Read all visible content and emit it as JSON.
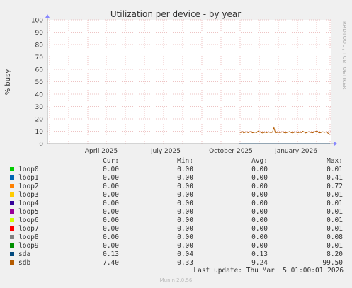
{
  "chart_data": {
    "type": "line",
    "title": "Utilization per device - by year",
    "ylabel": "% busy",
    "ylim": [
      0,
      100
    ],
    "yticks": [
      0,
      10,
      20,
      30,
      40,
      50,
      60,
      70,
      80,
      90,
      100
    ],
    "xticks": [
      "April 2025",
      "July 2025",
      "October 2025",
      "January 2026"
    ],
    "grid": true,
    "side_text": "RRDTOOL / TOBI OETIKER",
    "series_colors": {
      "loop0": "#00cc00",
      "loop1": "#0066b3",
      "loop2": "#ff8000",
      "loop3": "#ffcc00",
      "loop4": "#330099",
      "loop5": "#990099",
      "loop6": "#ccff00",
      "loop7": "#ff0000",
      "loop8": "#808080",
      "loop9": "#008f00",
      "sda": "#00487d",
      "sdb": "#b35a00"
    },
    "sdb_series": {
      "x_range": [
        "Oct 2025",
        "Mar 2026"
      ],
      "values": [
        9.5,
        9.0,
        9.8,
        8.7,
        9.2,
        9.6,
        8.9,
        9.3,
        9.9,
        8.8,
        9.1,
        9.4,
        9.0,
        10.2,
        9.6,
        9.1,
        8.6,
        9.0,
        9.3,
        8.9,
        9.5,
        9.2,
        9.0,
        9.4,
        13.0,
        8.8,
        9.0,
        9.3,
        8.9,
        9.2,
        9.6,
        9.0,
        8.7,
        9.1,
        9.4,
        9.8,
        9.0,
        8.6,
        9.2,
        9.5,
        9.1,
        8.9,
        9.3,
        9.0,
        10.0,
        9.5,
        8.7,
        9.1,
        9.6,
        9.2,
        9.0,
        8.8,
        9.4,
        9.9,
        10.3,
        9.0,
        8.8,
        9.2,
        9.6,
        9.1,
        9.5,
        9.0,
        8.2,
        7.4
      ]
    },
    "sda_series": {
      "values_level": 0.13
    }
  },
  "legend": {
    "headers": [
      "Cur:",
      "Min:",
      "Avg:",
      "Max:"
    ],
    "rows": [
      {
        "name": "loop0",
        "color": "#00cc00",
        "cur": "0.00",
        "min": "0.00",
        "avg": "0.00",
        "max": "0.01"
      },
      {
        "name": "loop1",
        "color": "#0066b3",
        "cur": "0.00",
        "min": "0.00",
        "avg": "0.00",
        "max": "0.41"
      },
      {
        "name": "loop2",
        "color": "#ff8000",
        "cur": "0.00",
        "min": "0.00",
        "avg": "0.00",
        "max": "0.72"
      },
      {
        "name": "loop3",
        "color": "#ffcc00",
        "cur": "0.00",
        "min": "0.00",
        "avg": "0.00",
        "max": "0.01"
      },
      {
        "name": "loop4",
        "color": "#330099",
        "cur": "0.00",
        "min": "0.00",
        "avg": "0.00",
        "max": "0.01"
      },
      {
        "name": "loop5",
        "color": "#990099",
        "cur": "0.00",
        "min": "0.00",
        "avg": "0.00",
        "max": "0.01"
      },
      {
        "name": "loop6",
        "color": "#ccff00",
        "cur": "0.00",
        "min": "0.00",
        "avg": "0.00",
        "max": "0.01"
      },
      {
        "name": "loop7",
        "color": "#ff0000",
        "cur": "0.00",
        "min": "0.00",
        "avg": "0.00",
        "max": "0.01"
      },
      {
        "name": "loop8",
        "color": "#808080",
        "cur": "0.00",
        "min": "0.00",
        "avg": "0.00",
        "max": "0.08"
      },
      {
        "name": "loop9",
        "color": "#008f00",
        "cur": "0.00",
        "min": "0.00",
        "avg": "0.00",
        "max": "0.01"
      },
      {
        "name": "sda",
        "color": "#00487d",
        "cur": "0.13",
        "min": "0.04",
        "avg": "0.13",
        "max": "8.20"
      },
      {
        "name": "sdb",
        "color": "#b35a00",
        "cur": "7.40",
        "min": "0.33",
        "avg": "9.24",
        "max": "99.50"
      }
    ]
  },
  "last_update": "Last update: Thu Mar  5 01:00:01 2026",
  "footer": "Munin 2.0.56"
}
